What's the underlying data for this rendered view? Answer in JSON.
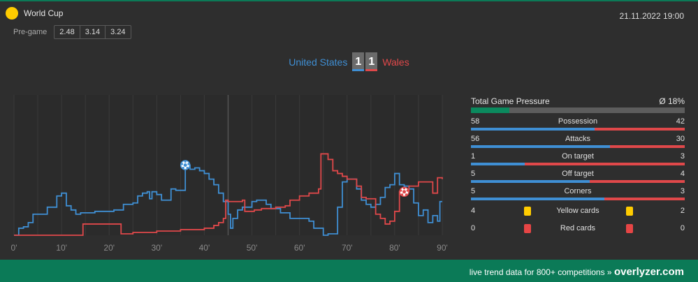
{
  "competition": {
    "name": "World Cup",
    "icon": "ball-dot-icon",
    "icon_color": "#ffcc00"
  },
  "match_datetime": "21.11.2022 19:00",
  "pregame": {
    "label": "Pre-game",
    "odds": [
      "2.48",
      "3.14",
      "3.24"
    ]
  },
  "home": {
    "name": "United States",
    "score": "1",
    "color": "#3f8fd4"
  },
  "away": {
    "name": "Wales",
    "score": "1",
    "color": "#e0484a"
  },
  "chart_data": {
    "type": "line",
    "xlabel": "",
    "ylabel": "",
    "x_ticks": [
      "0'",
      "10'",
      "20'",
      "30'",
      "40'",
      "50'",
      "60'",
      "70'",
      "80'",
      "90'"
    ],
    "xlim": [
      0,
      90
    ],
    "ylim": [
      0,
      100
    ],
    "grid": true,
    "series": [
      {
        "color": "#3f8fd4",
        "points": [
          [
            0,
            0
          ],
          [
            1,
            5
          ],
          [
            2,
            6
          ],
          [
            3,
            9
          ],
          [
            4,
            15
          ],
          [
            5,
            15
          ],
          [
            6,
            15
          ],
          [
            7,
            20
          ],
          [
            8,
            20
          ],
          [
            9,
            28
          ],
          [
            10,
            30
          ],
          [
            11,
            21
          ],
          [
            12,
            18
          ],
          [
            13,
            15
          ],
          [
            14,
            16
          ],
          [
            15,
            16
          ],
          [
            17,
            17
          ],
          [
            19,
            17
          ],
          [
            21,
            18
          ],
          [
            23,
            22
          ],
          [
            25,
            23
          ],
          [
            26,
            28
          ],
          [
            27,
            30
          ],
          [
            28,
            31
          ],
          [
            28.5,
            26
          ],
          [
            29,
            31
          ],
          [
            30,
            29
          ],
          [
            31,
            25
          ],
          [
            32,
            25
          ],
          [
            33,
            33
          ],
          [
            34,
            32
          ],
          [
            35,
            32
          ],
          [
            36,
            50
          ],
          [
            37,
            47
          ],
          [
            38,
            48
          ],
          [
            39,
            46
          ],
          [
            40,
            44
          ],
          [
            41,
            40
          ],
          [
            42,
            36
          ],
          [
            43,
            30
          ],
          [
            44,
            24
          ],
          [
            45,
            15
          ],
          [
            45.5,
            5
          ],
          [
            46,
            12
          ],
          [
            47,
            18
          ],
          [
            48,
            20
          ],
          [
            49,
            20
          ],
          [
            50,
            24
          ],
          [
            51,
            25
          ],
          [
            52,
            25
          ],
          [
            53,
            22
          ],
          [
            54,
            19
          ],
          [
            56,
            16
          ],
          [
            58,
            12
          ],
          [
            60,
            12
          ],
          [
            62,
            10
          ],
          [
            63,
            5
          ],
          [
            65,
            0
          ],
          [
            66,
            1
          ],
          [
            67,
            1
          ],
          [
            68,
            20
          ],
          [
            69,
            38
          ],
          [
            70,
            40
          ],
          [
            71,
            40
          ],
          [
            72,
            33
          ],
          [
            73,
            25
          ],
          [
            74,
            22
          ],
          [
            75,
            20
          ],
          [
            76,
            22
          ],
          [
            77,
            27
          ],
          [
            78,
            34
          ],
          [
            79,
            36
          ],
          [
            80,
            44
          ],
          [
            81,
            36
          ],
          [
            82,
            35
          ],
          [
            83,
            33
          ],
          [
            84,
            23
          ],
          [
            85,
            14
          ],
          [
            86,
            18
          ],
          [
            87,
            9
          ],
          [
            88,
            14
          ],
          [
            89,
            10
          ],
          [
            89.5,
            24
          ],
          [
            90,
            24
          ]
        ]
      },
      {
        "color": "#e0484a",
        "points": [
          [
            0,
            0
          ],
          [
            14,
            0
          ],
          [
            14.5,
            8
          ],
          [
            22,
            8
          ],
          [
            22.5,
            1
          ],
          [
            25,
            2
          ],
          [
            30,
            3
          ],
          [
            35,
            4
          ],
          [
            40,
            5
          ],
          [
            42,
            7
          ],
          [
            43,
            9
          ],
          [
            44,
            12
          ],
          [
            44.5,
            25
          ],
          [
            45,
            24
          ],
          [
            48,
            25
          ],
          [
            48.5,
            17
          ],
          [
            50,
            17
          ],
          [
            50.5,
            18
          ],
          [
            52,
            19
          ],
          [
            55,
            20
          ],
          [
            57,
            21
          ],
          [
            58,
            25
          ],
          [
            60,
            28
          ],
          [
            62,
            30
          ],
          [
            64,
            33
          ],
          [
            64.5,
            58
          ],
          [
            66,
            54
          ],
          [
            67,
            46
          ],
          [
            68,
            44
          ],
          [
            69,
            42
          ],
          [
            70,
            40
          ],
          [
            72,
            35
          ],
          [
            73,
            27
          ],
          [
            74,
            26
          ],
          [
            75,
            26
          ],
          [
            76,
            15
          ],
          [
            77,
            12
          ],
          [
            78,
            8
          ],
          [
            79,
            10
          ],
          [
            80,
            17
          ],
          [
            81,
            31
          ],
          [
            82,
            31
          ],
          [
            83,
            35
          ],
          [
            84,
            35
          ],
          [
            85,
            38
          ],
          [
            86,
            38
          ],
          [
            87,
            38
          ],
          [
            88,
            30
          ],
          [
            89,
            41
          ],
          [
            90,
            40
          ]
        ]
      }
    ],
    "goal_markers": [
      {
        "team": "home",
        "minute": 36,
        "value": 50
      },
      {
        "team": "away",
        "minute": 82,
        "value": 31
      }
    ]
  },
  "stats": {
    "pressure": {
      "label": "Total Game Pressure",
      "avg": "Ø 18%",
      "fill_percent": 18
    },
    "rows": [
      {
        "key": "possession",
        "home": "58",
        "label": "Possession",
        "away": "42"
      },
      {
        "key": "attacks",
        "home": "56",
        "label": "Attacks",
        "away": "30"
      },
      {
        "key": "on-target",
        "home": "1",
        "label": "On target",
        "away": "3"
      },
      {
        "key": "off-target",
        "home": "5",
        "label": "Off target",
        "away": "4"
      },
      {
        "key": "corners",
        "home": "5",
        "label": "Corners",
        "away": "3"
      }
    ],
    "yellow": {
      "home": "4",
      "label": "Yellow cards",
      "away": "2",
      "color": "#ffcc00"
    },
    "red": {
      "home": "0",
      "label": "Red cards",
      "away": "0",
      "color": "#e64545"
    }
  },
  "footer": {
    "text": "live trend data for 800+ competitions »",
    "brand": "overlyzer.com"
  }
}
